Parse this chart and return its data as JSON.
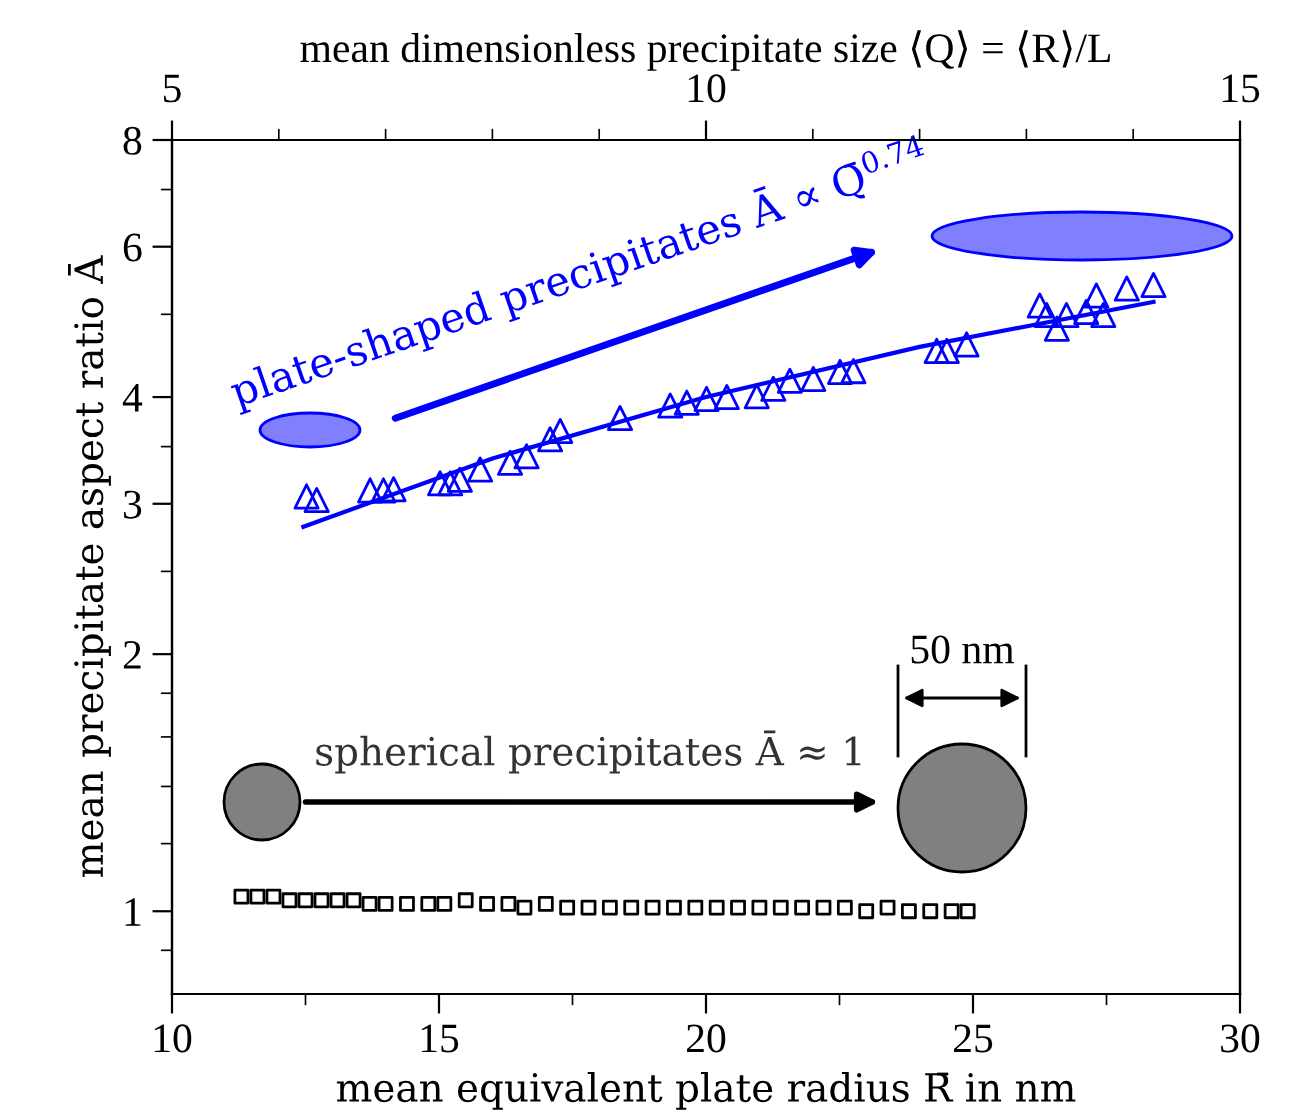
{
  "chart_data": {
    "type": "scatter",
    "xlabel": "mean equivalent plate radius R̄ in nm",
    "ylabel": "mean precipitate aspect ratio Ā",
    "x2label": "mean dimensionless precipitate size ⟨Q⟩ = ⟨R⟩/L",
    "xlim": [
      10,
      30
    ],
    "xticks": [
      10,
      15,
      20,
      25,
      30
    ],
    "x2lim": [
      5,
      15
    ],
    "x2ticks": [
      5,
      10,
      15
    ],
    "ylim": [
      0.8,
      8
    ],
    "yticks": [
      1,
      2,
      3,
      4,
      6,
      8
    ],
    "log": "y",
    "grid": false,
    "legend": false,
    "annotations": [
      "plate-shaped precipitates Ā ∝ Q̄$^{0.74}$",
      "spherical precipitates Ā ≈ 1",
      "50 nm"
    ],
    "series": [
      {
        "marker": "triangle",
        "color": "#0000ff",
        "x": [
          12.52,
          12.71,
          13.71,
          13.96,
          14.15,
          15.02,
          15.21,
          15.39,
          15.77,
          16.33,
          16.64,
          17.08,
          17.27,
          18.39,
          19.33,
          19.64,
          20.01,
          20.39,
          20.95,
          21.26,
          21.57,
          22.01,
          22.51,
          22.76,
          24.32,
          24.51,
          24.88,
          26.25,
          26.38,
          26.57,
          26.75,
          27.12,
          27.31,
          27.44,
          27.88,
          28.38
        ],
        "values": [
          3.06,
          3.03,
          3.11,
          3.11,
          3.12,
          3.17,
          3.17,
          3.2,
          3.29,
          3.35,
          3.41,
          3.57,
          3.65,
          3.78,
          3.91,
          3.94,
          3.98,
          4.0,
          4.01,
          4.09,
          4.18,
          4.2,
          4.28,
          4.29,
          4.53,
          4.53,
          4.61,
          5.12,
          4.99,
          4.81,
          4.99,
          5.03,
          5.26,
          4.99,
          5.36,
          5.41
        ]
      },
      {
        "type": "line",
        "marker": "none",
        "color": "#0000ff",
        "x": [
          12.46,
          16,
          20,
          24,
          28.38
        ],
        "values": [
          2.82,
          3.39,
          4.0,
          4.58,
          5.17
        ]
      },
      {
        "marker": "square",
        "color": "#000000",
        "x": [
          11.3,
          11.6,
          11.9,
          12.2,
          12.5,
          12.8,
          13.1,
          13.4,
          13.7,
          14.0,
          14.4,
          14.8,
          15.1,
          15.5,
          15.9,
          16.3,
          16.6,
          17.0,
          17.4,
          17.8,
          18.2,
          18.6,
          19.0,
          19.4,
          19.8,
          20.2,
          20.6,
          21.0,
          21.4,
          21.8,
          22.2,
          22.6,
          23.0,
          23.4,
          23.8,
          24.2,
          24.6,
          24.9
        ],
        "values": [
          1.04,
          1.04,
          1.04,
          1.03,
          1.03,
          1.03,
          1.03,
          1.03,
          1.02,
          1.02,
          1.02,
          1.02,
          1.02,
          1.03,
          1.02,
          1.02,
          1.01,
          1.02,
          1.01,
          1.01,
          1.01,
          1.01,
          1.01,
          1.01,
          1.01,
          1.01,
          1.01,
          1.01,
          1.01,
          1.01,
          1.01,
          1.01,
          1.0,
          1.01,
          1.0,
          1.0,
          1.0,
          1.0
        ]
      }
    ]
  }
}
